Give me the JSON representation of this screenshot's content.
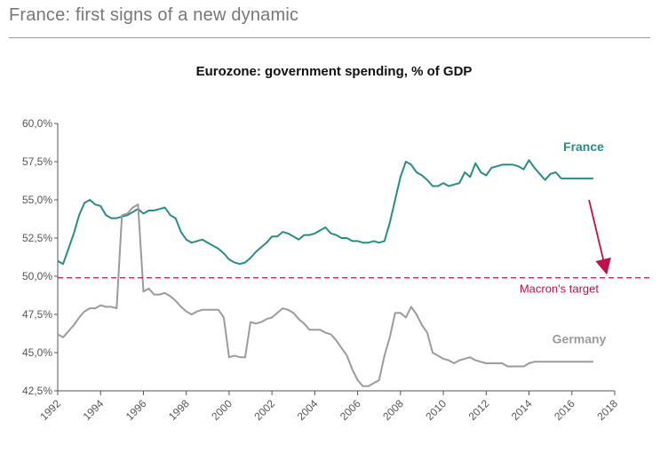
{
  "header": {
    "title": "France: first signs of a new dynamic"
  },
  "colors": {
    "france": "#2a8c86",
    "germany": "#9b9b9b",
    "target": "#c0114a",
    "axis": "#555555"
  },
  "chart_data": {
    "type": "line",
    "title": "Eurozone: government spending, % of GDP",
    "xlabel": "",
    "ylabel": "",
    "xlim": [
      1992,
      2018
    ],
    "ylim": [
      42.5,
      60.0
    ],
    "x_ticks": [
      "1992",
      "1994",
      "1996",
      "1998",
      "2000",
      "2002",
      "2004",
      "2006",
      "2008",
      "2010",
      "2012",
      "2014",
      "2016",
      "2018"
    ],
    "y_ticks": [
      "60,0%",
      "57,5%",
      "55,0%",
      "52,5%",
      "50,0%",
      "47,5%",
      "45,0%",
      "42,5%"
    ],
    "y_tick_values": [
      60.0,
      57.5,
      55.0,
      52.5,
      50.0,
      47.5,
      45.0,
      42.5
    ],
    "grid": false,
    "series": [
      {
        "name": "France",
        "label": "France",
        "color": "#2a8c86",
        "x": [
          1992.0,
          1992.25,
          1992.5,
          1992.75,
          1993.0,
          1993.25,
          1993.5,
          1993.75,
          1994.0,
          1994.25,
          1994.5,
          1994.75,
          1995.0,
          1995.25,
          1995.5,
          1995.75,
          1996.0,
          1996.25,
          1996.5,
          1996.75,
          1997.0,
          1997.25,
          1997.5,
          1997.75,
          1998.0,
          1998.25,
          1998.5,
          1998.75,
          1999.0,
          1999.25,
          1999.5,
          1999.75,
          2000.0,
          2000.25,
          2000.5,
          2000.75,
          2001.0,
          2001.25,
          2001.5,
          2001.75,
          2002.0,
          2002.25,
          2002.5,
          2002.75,
          2003.0,
          2003.25,
          2003.5,
          2003.75,
          2004.0,
          2004.25,
          2004.5,
          2004.75,
          2005.0,
          2005.25,
          2005.5,
          2005.75,
          2006.0,
          2006.25,
          2006.5,
          2006.75,
          2007.0,
          2007.25,
          2007.5,
          2007.75,
          2008.0,
          2008.25,
          2008.5,
          2008.75,
          2009.0,
          2009.25,
          2009.5,
          2009.75,
          2010.0,
          2010.25,
          2010.5,
          2010.75,
          2011.0,
          2011.25,
          2011.5,
          2011.75,
          2012.0,
          2012.25,
          2012.5,
          2012.75,
          2013.0,
          2013.25,
          2013.5,
          2013.75,
          2014.0,
          2014.25,
          2014.5,
          2014.75,
          2015.0,
          2015.25,
          2015.5,
          2015.75,
          2016.0,
          2016.25,
          2016.5,
          2016.75,
          2017.0
        ],
        "values": [
          51.0,
          50.8,
          51.8,
          52.8,
          54.0,
          54.8,
          55.0,
          54.7,
          54.6,
          54.0,
          53.8,
          53.8,
          53.9,
          54.0,
          54.2,
          54.4,
          54.1,
          54.3,
          54.3,
          54.4,
          54.5,
          54.0,
          53.8,
          52.9,
          52.4,
          52.2,
          52.3,
          52.4,
          52.2,
          52.0,
          51.8,
          51.5,
          51.1,
          50.9,
          50.8,
          50.9,
          51.2,
          51.6,
          51.9,
          52.2,
          52.6,
          52.6,
          52.9,
          52.8,
          52.6,
          52.4,
          52.7,
          52.7,
          52.8,
          53.0,
          53.2,
          52.8,
          52.7,
          52.5,
          52.5,
          52.3,
          52.3,
          52.2,
          52.2,
          52.3,
          52.2,
          52.3,
          53.5,
          55.0,
          56.5,
          57.5,
          57.3,
          56.8,
          56.6,
          56.3,
          55.9,
          55.9,
          56.1,
          55.9,
          56.0,
          56.1,
          56.8,
          56.5,
          57.4,
          56.8,
          56.6,
          57.1,
          57.2,
          57.3,
          57.3,
          57.3,
          57.2,
          57.0,
          57.6,
          57.1,
          56.7,
          56.3,
          56.7,
          56.8,
          56.4,
          56.4,
          56.4,
          56.4,
          56.4,
          56.4,
          56.4
        ]
      },
      {
        "name": "Germany",
        "label": "Germany",
        "color": "#9b9b9b",
        "x": [
          1992.0,
          1992.25,
          1992.5,
          1992.75,
          1993.0,
          1993.25,
          1993.5,
          1993.75,
          1994.0,
          1994.25,
          1994.5,
          1994.75,
          1995.0,
          1995.25,
          1995.5,
          1995.75,
          1996.0,
          1996.25,
          1996.5,
          1996.75,
          1997.0,
          1997.25,
          1997.5,
          1997.75,
          1998.0,
          1998.25,
          1998.5,
          1998.75,
          1999.0,
          1999.25,
          1999.5,
          1999.75,
          2000.0,
          2000.25,
          2000.5,
          2000.75,
          2001.0,
          2001.25,
          2001.5,
          2001.75,
          2002.0,
          2002.25,
          2002.5,
          2002.75,
          2003.0,
          2003.25,
          2003.5,
          2003.75,
          2004.0,
          2004.25,
          2004.5,
          2004.75,
          2005.0,
          2005.25,
          2005.5,
          2005.75,
          2006.0,
          2006.25,
          2006.5,
          2006.75,
          2007.0,
          2007.25,
          2007.5,
          2007.75,
          2008.0,
          2008.25,
          2008.5,
          2008.75,
          2009.0,
          2009.25,
          2009.5,
          2009.75,
          2010.0,
          2010.25,
          2010.5,
          2010.75,
          2011.0,
          2011.25,
          2011.5,
          2011.75,
          2012.0,
          2012.25,
          2012.5,
          2012.75,
          2013.0,
          2013.25,
          2013.5,
          2013.75,
          2014.0,
          2014.25,
          2014.5,
          2014.75,
          2015.0,
          2015.25,
          2015.5,
          2015.75,
          2016.0,
          2016.25,
          2016.5,
          2016.75,
          2017.0
        ],
        "values": [
          46.2,
          46.0,
          46.4,
          46.8,
          47.3,
          47.7,
          47.9,
          47.9,
          48.1,
          48.0,
          48.0,
          47.9,
          54.0,
          54.1,
          54.5,
          54.7,
          49.0,
          49.2,
          48.8,
          48.8,
          48.9,
          48.7,
          48.4,
          48.0,
          47.7,
          47.5,
          47.7,
          47.8,
          47.8,
          47.8,
          47.8,
          47.3,
          44.7,
          44.8,
          44.7,
          44.7,
          47.0,
          46.9,
          47.0,
          47.2,
          47.3,
          47.6,
          47.9,
          47.8,
          47.6,
          47.2,
          46.9,
          46.5,
          46.5,
          46.5,
          46.3,
          46.2,
          45.8,
          45.3,
          44.8,
          43.9,
          43.2,
          42.8,
          42.8,
          43.0,
          43.2,
          44.8,
          46.0,
          47.6,
          47.6,
          47.3,
          48.0,
          47.5,
          46.8,
          46.3,
          45.0,
          44.8,
          44.6,
          44.5,
          44.3,
          44.5,
          44.6,
          44.7,
          44.5,
          44.4,
          44.3,
          44.3,
          44.3,
          44.3,
          44.1,
          44.1,
          44.1,
          44.1,
          44.3,
          44.4,
          44.4,
          44.4,
          44.4,
          44.4,
          44.4,
          44.4,
          44.4,
          44.4,
          44.4,
          44.4,
          44.4
        ]
      }
    ],
    "reference_line": {
      "label": "Macron's target",
      "y": 49.9,
      "color": "#c0114a"
    },
    "annotations": [
      {
        "text": "Macron's target"
      },
      {
        "text": "France"
      },
      {
        "text": "Germany"
      }
    ]
  }
}
